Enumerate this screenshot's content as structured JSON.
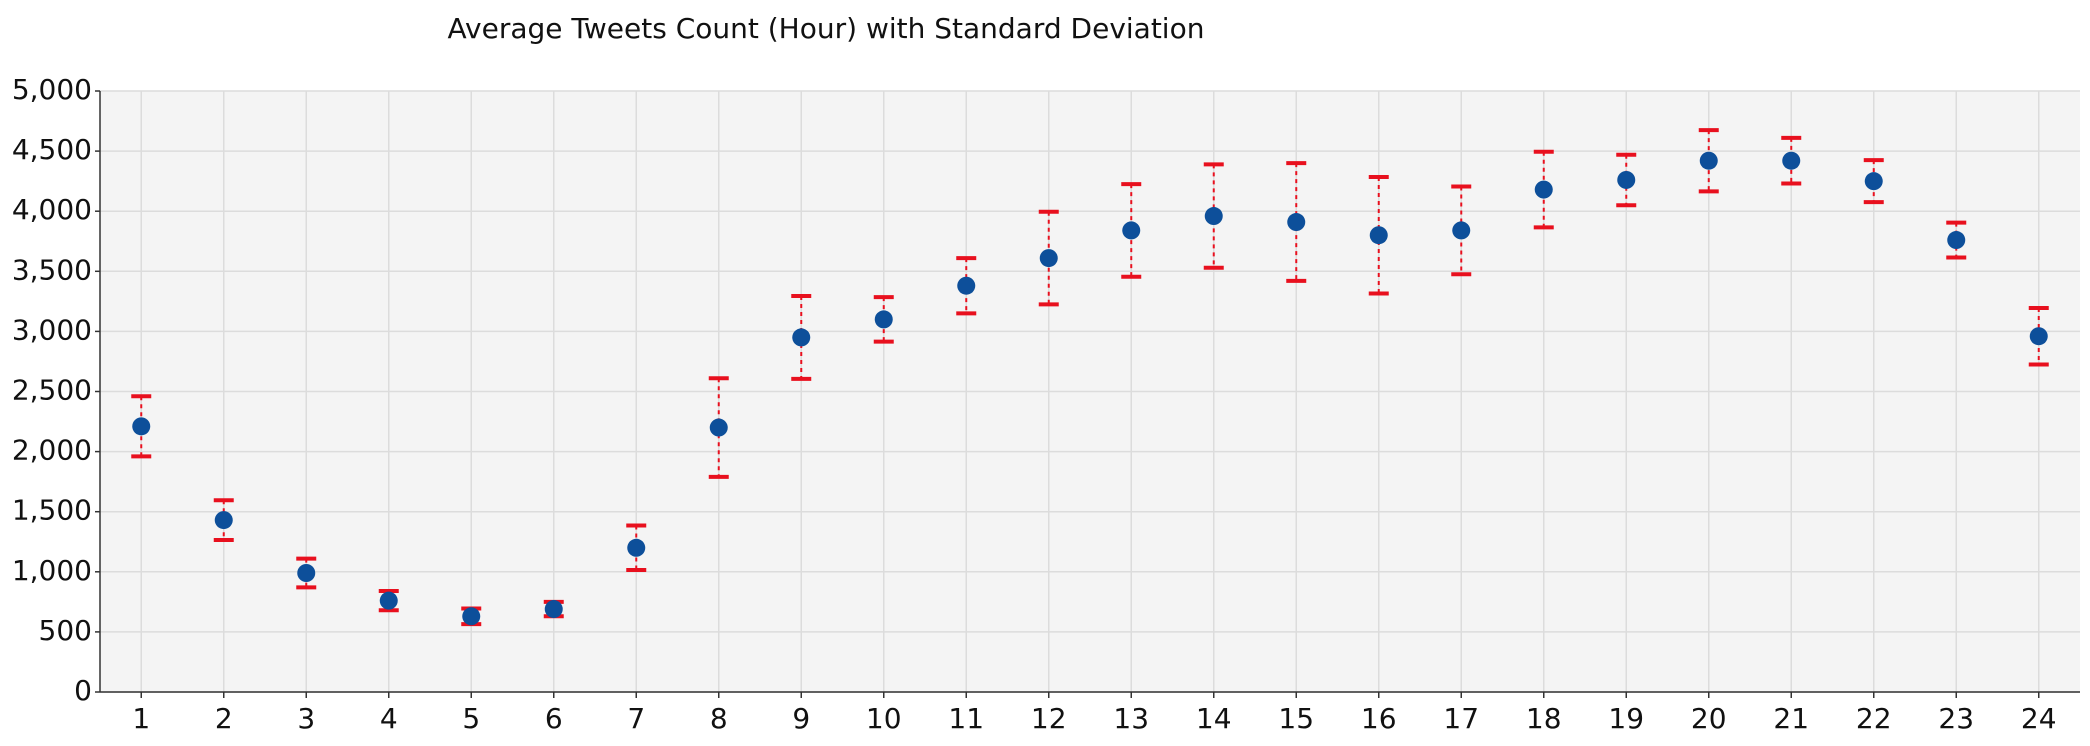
{
  "chart_data": {
    "type": "errorbar",
    "title": "Average Tweets Count (Hour) with Standard Deviation",
    "categories": [
      "1",
      "2",
      "3",
      "4",
      "5",
      "6",
      "7",
      "8",
      "9",
      "10",
      "11",
      "12",
      "13",
      "14",
      "15",
      "16",
      "17",
      "18",
      "19",
      "20",
      "21",
      "22",
      "23",
      "24"
    ],
    "series": [
      {
        "color": "#0d4f9a",
        "error_color": "#e8101e",
        "values": [
          2210,
          1430,
          990,
          760,
          630,
          690,
          1200,
          2200,
          2950,
          3100,
          3380,
          3610,
          3840,
          3960,
          3910,
          3800,
          3840,
          4180,
          4260,
          4420,
          4420,
          4250,
          3760,
          2960
        ],
        "errors": [
          250,
          165,
          120,
          80,
          65,
          60,
          185,
          410,
          345,
          185,
          230,
          385,
          385,
          430,
          490,
          485,
          365,
          315,
          210,
          255,
          190,
          175,
          145,
          235
        ]
      }
    ],
    "ylim": [
      0,
      5000
    ],
    "yticks": [
      0,
      500,
      {
        "value": 1000,
        "label": "1,000"
      },
      {
        "value": 1500,
        "label": "1,500"
      },
      {
        "value": 2000,
        "label": "2,000"
      },
      {
        "value": 2500,
        "label": "2,500"
      },
      {
        "value": 3000,
        "label": "3,000"
      },
      {
        "value": 3500,
        "label": "3,500"
      },
      {
        "value": 4000,
        "label": "4,000"
      },
      {
        "value": 4500,
        "label": "4,500"
      },
      {
        "value": 5000,
        "label": "5,000"
      }
    ],
    "grid": true
  }
}
